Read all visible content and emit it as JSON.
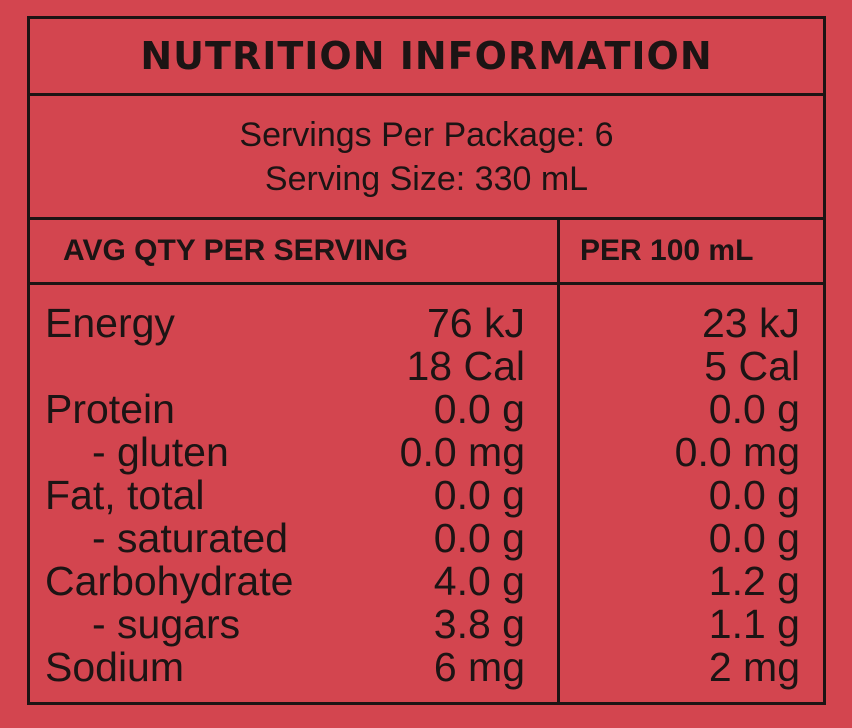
{
  "title": "NUTRITION INFORMATION",
  "servings_per_package": "Servings Per Package: 6",
  "serving_size": "Serving Size: 330 mL",
  "headers": {
    "per_serving": "AVG QTY PER SERVING",
    "per_100": "PER 100 mL"
  },
  "rows": [
    {
      "label": "Energy",
      "per_serving": "76 kJ",
      "per_100": "23 kJ"
    },
    {
      "label": "",
      "per_serving": "18 Cal",
      "per_100": "5 Cal"
    },
    {
      "label": "Protein",
      "per_serving": "0.0 g",
      "per_100": "0.0 g"
    },
    {
      "label": "- gluten",
      "per_serving": "0.0 mg",
      "per_100": "0.0 mg"
    },
    {
      "label": "Fat, total",
      "per_serving": "0.0 g",
      "per_100": "0.0 g"
    },
    {
      "label": "- saturated",
      "per_serving": "0.0 g",
      "per_100": "0.0 g"
    },
    {
      "label": "Carbohydrate",
      "per_serving": "4.0 g",
      "per_100": "1.2 g"
    },
    {
      "label": "- sugars",
      "per_serving": "3.8 g",
      "per_100": "1.1 g"
    },
    {
      "label": "Sodium",
      "per_serving": "6 mg",
      "per_100": "2 mg"
    }
  ],
  "colors": {
    "background": "#d3454f",
    "ink": "#1c1414"
  }
}
